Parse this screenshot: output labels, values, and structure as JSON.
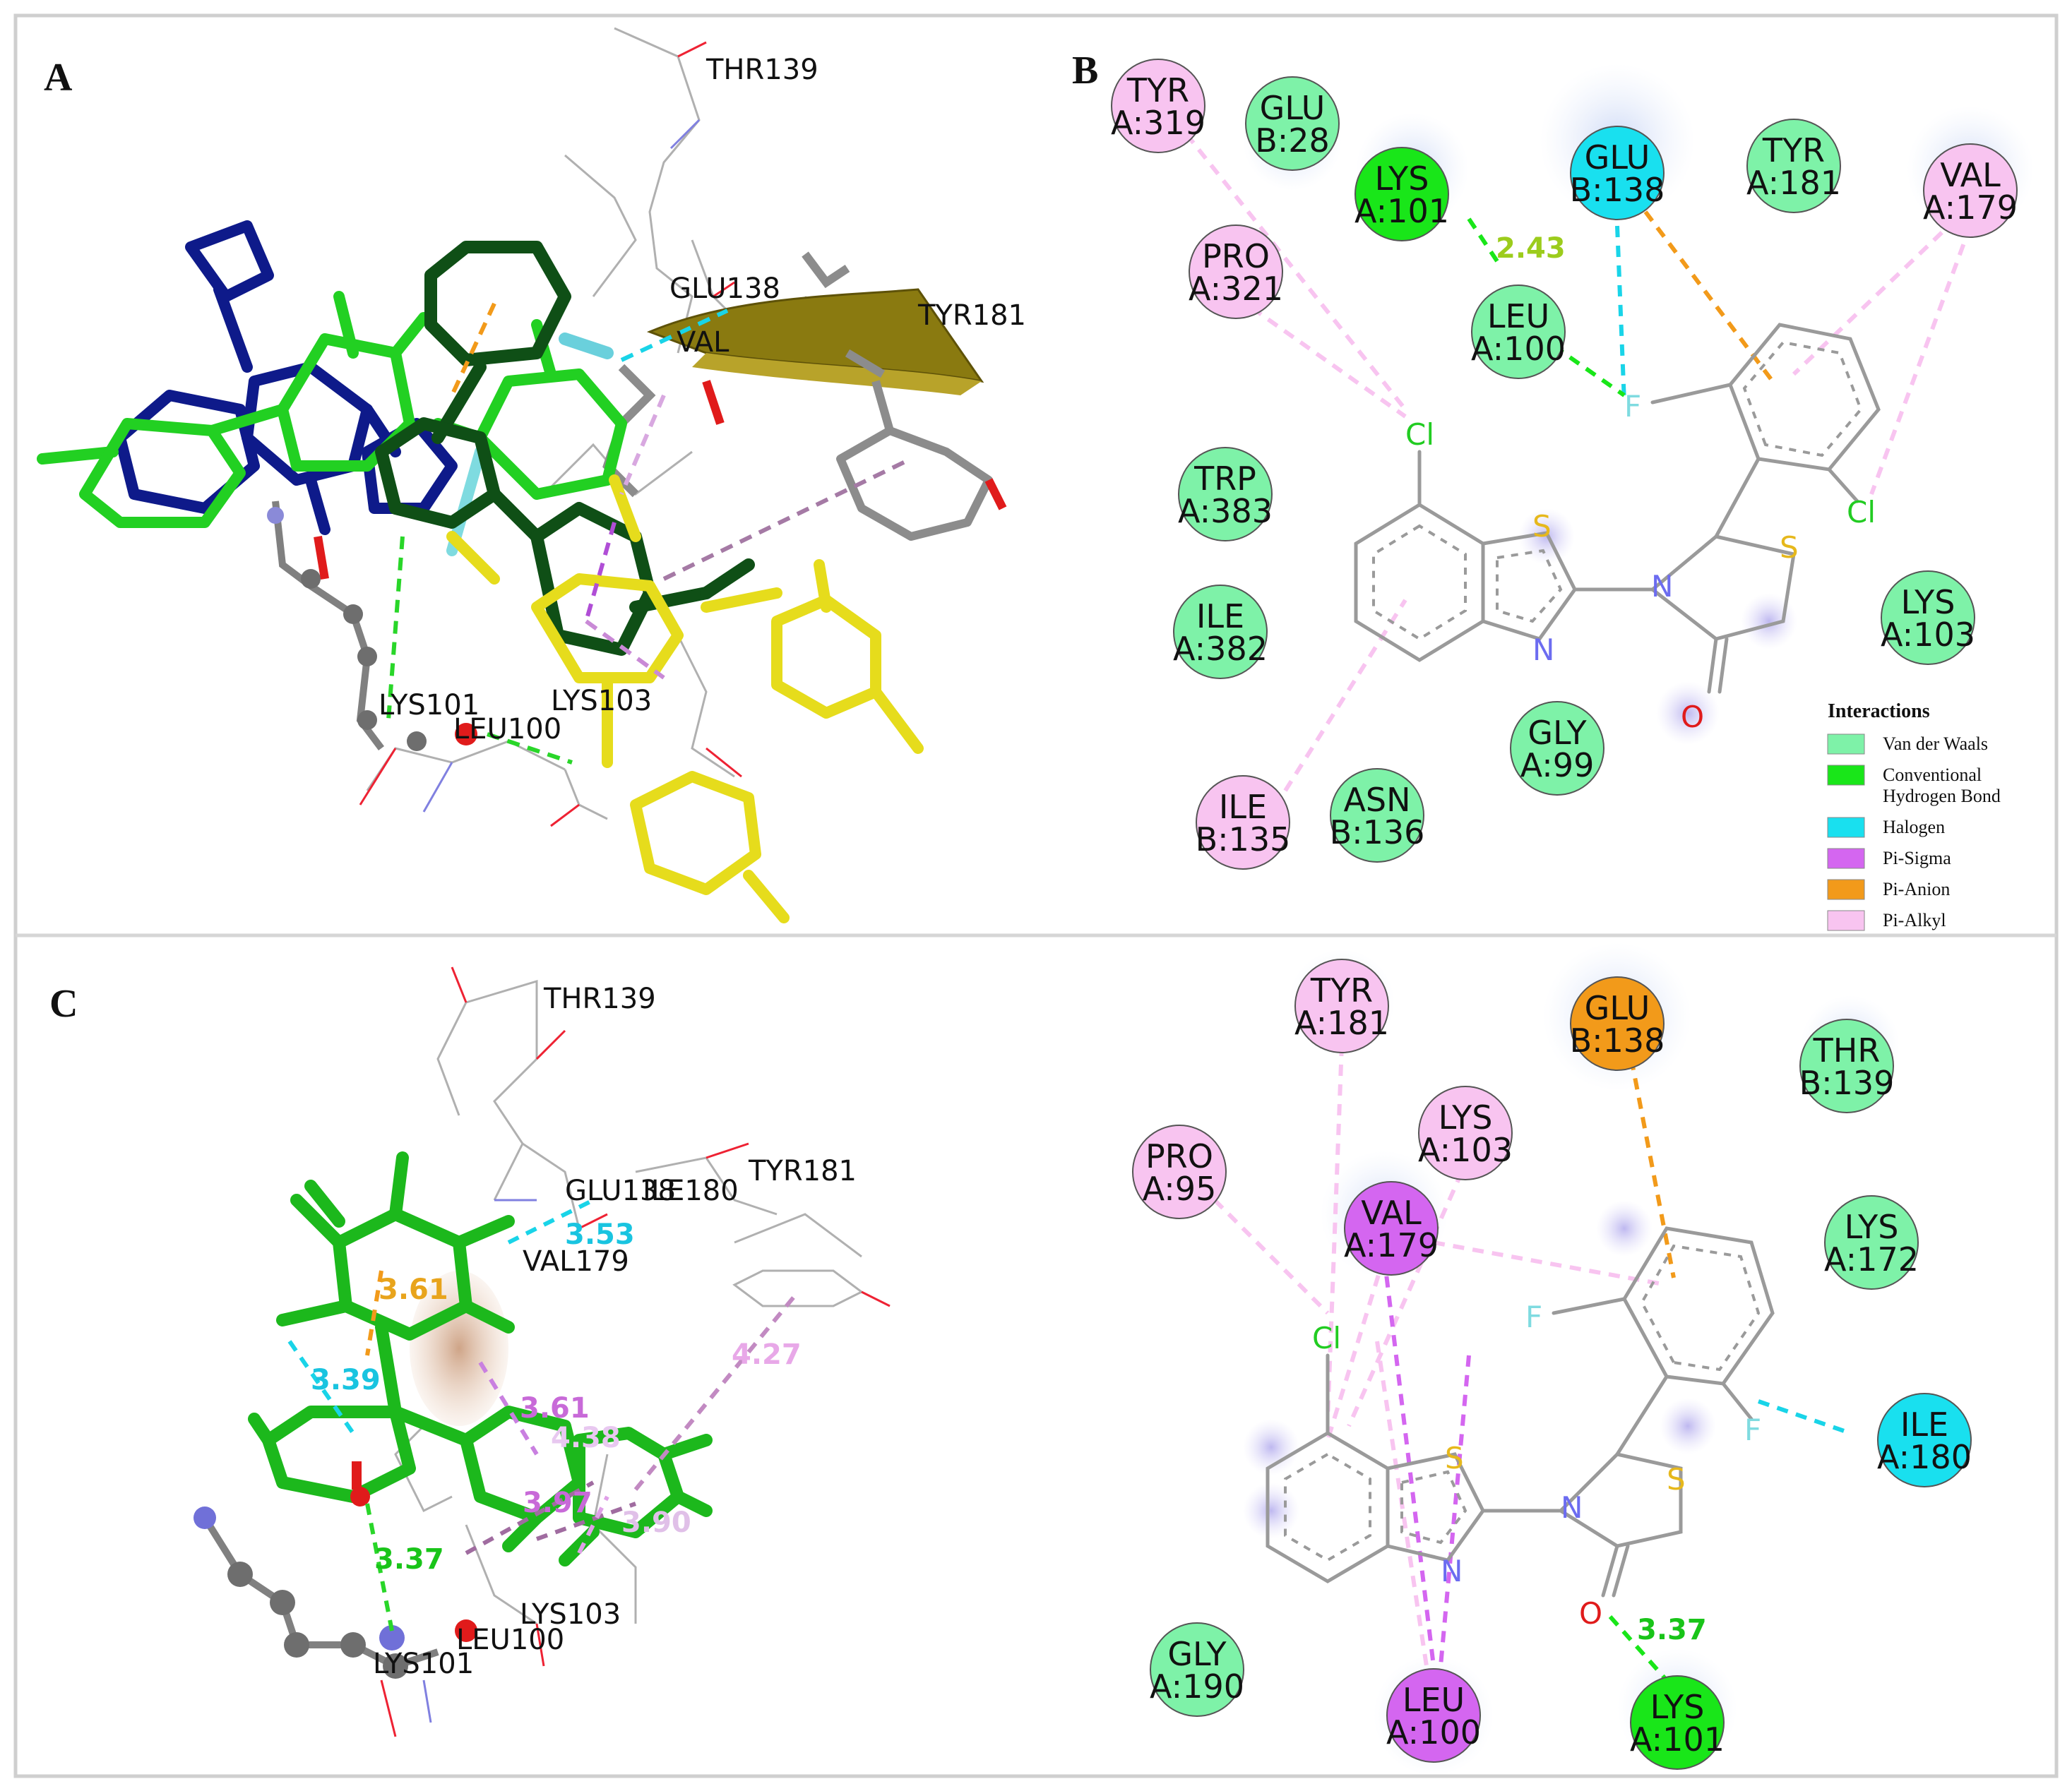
{
  "panels": {
    "A": {
      "letter": "A",
      "labels": [
        "THR139",
        "GLU138",
        "VAL",
        "TYR181",
        "LYS101",
        "LEU100",
        "LYS103"
      ]
    },
    "B": {
      "letter": "B",
      "residues": [
        {
          "name": "TYR",
          "chain": "A:319",
          "type": "pi_alkyl"
        },
        {
          "name": "GLU",
          "chain": "B:28",
          "type": "vdw"
        },
        {
          "name": "LYS",
          "chain": "A:101",
          "type": "hbond"
        },
        {
          "name": "GLU",
          "chain": "B:138",
          "type": "halogen"
        },
        {
          "name": "TYR",
          "chain": "A:181",
          "type": "vdw"
        },
        {
          "name": "VAL",
          "chain": "A:179",
          "type": "pi_alkyl"
        },
        {
          "name": "PRO",
          "chain": "A:321",
          "type": "pi_alkyl"
        },
        {
          "name": "LEU",
          "chain": "A:100",
          "type": "vdw"
        },
        {
          "name": "TRP",
          "chain": "A:383",
          "type": "vdw"
        },
        {
          "name": "ILE",
          "chain": "A:382",
          "type": "vdw"
        },
        {
          "name": "LYS",
          "chain": "A:103",
          "type": "vdw"
        },
        {
          "name": "GLY",
          "chain": "A:99",
          "type": "vdw"
        },
        {
          "name": "ILE",
          "chain": "B:135",
          "type": "pi_alkyl"
        },
        {
          "name": "ASN",
          "chain": "B:136",
          "type": "vdw"
        }
      ],
      "distance": "2.43",
      "atoms": {
        "cl1": "Cl",
        "cl2": "Cl",
        "s1": "S",
        "s2": "S",
        "n1": "N",
        "n2": "N",
        "o": "O",
        "f": "F"
      },
      "legend": {
        "title": "Interactions",
        "items": [
          {
            "label": "Van der Waals",
            "color": "#7ef2a8"
          },
          {
            "label": "Conventional",
            "label2": "Hydrogen Bond",
            "color": "#19e619"
          },
          {
            "label": "Halogen",
            "color": "#19e0ef"
          },
          {
            "label": "Pi-Sigma",
            "color": "#d466f0"
          },
          {
            "label": "Pi-Anion",
            "color": "#f29a1a"
          },
          {
            "label": "Pi-Alkyl",
            "color": "#f8c4f0"
          }
        ]
      }
    },
    "C": {
      "letter": "C",
      "labels": [
        "THR139",
        "GLU138",
        "ILE180",
        "TYR181",
        "VAL179",
        "LYS101",
        "LEU100",
        "LYS103"
      ],
      "distances": [
        "3.53",
        "3.39",
        "3.37",
        "3.61",
        "3.97",
        "4.27",
        "3.90",
        "3.61",
        "4.38"
      ]
    },
    "D": {
      "residues": [
        {
          "name": "TYR",
          "chain": "A:181",
          "type": "pi_alkyl"
        },
        {
          "name": "GLU",
          "chain": "B:138",
          "type": "pi_anion"
        },
        {
          "name": "THR",
          "chain": "B:139",
          "type": "vdw"
        },
        {
          "name": "PRO",
          "chain": "A:95",
          "type": "pi_alkyl"
        },
        {
          "name": "LYS",
          "chain": "A:103",
          "type": "pi_alkyl"
        },
        {
          "name": "VAL",
          "chain": "A:179",
          "type": "pi_sigma"
        },
        {
          "name": "LYS",
          "chain": "A:172",
          "type": "vdw"
        },
        {
          "name": "ILE",
          "chain": "A:180",
          "type": "halogen"
        },
        {
          "name": "GLY",
          "chain": "A:190",
          "type": "vdw"
        },
        {
          "name": "LEU",
          "chain": "A:100",
          "type": "pi_sigma"
        },
        {
          "name": "LYS",
          "chain": "A:101",
          "type": "hbond"
        }
      ],
      "distance": "3.37",
      "atoms": {
        "cl": "Cl",
        "s1": "S",
        "s2": "S",
        "n1": "N",
        "n2": "N",
        "o": "O",
        "f1": "F",
        "f2": "F"
      }
    }
  }
}
